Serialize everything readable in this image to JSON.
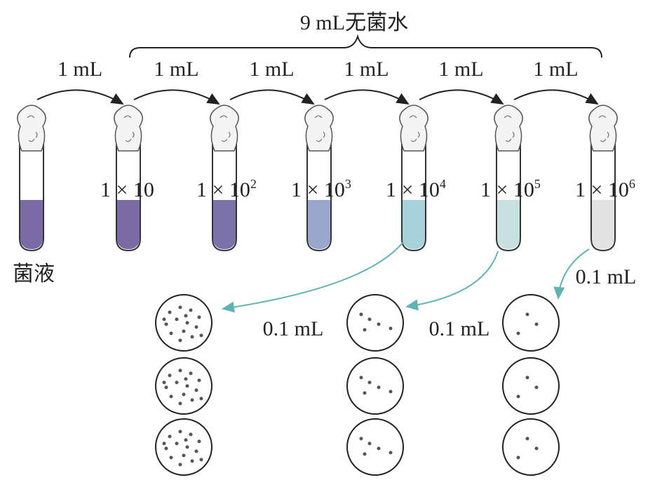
{
  "header": {
    "title": "9 mL无菌水"
  },
  "transfers": [
    "1 mL",
    "1 mL",
    "1 mL",
    "1 mL",
    "1 mL",
    "1 mL"
  ],
  "source_label": "菌液",
  "tubes": [
    {
      "text": "1 × 10"
    },
    {
      "text": "1 × 10",
      "sup": "2"
    },
    {
      "text": "1 × 10",
      "sup": "3"
    },
    {
      "text": "1 × 10",
      "sup": "4"
    },
    {
      "text": "1 × 10",
      "sup": "5"
    },
    {
      "text": "1 × 10",
      "sup": "6"
    }
  ],
  "plating": [
    "0.1 mL",
    "0.1 mL",
    "0.1 mL"
  ]
}
